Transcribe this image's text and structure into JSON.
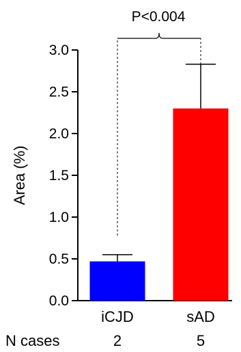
{
  "chart_data": {
    "type": "bar",
    "categories": [
      "iCJD",
      "sAD"
    ],
    "values": [
      0.47,
      2.3
    ],
    "errors": [
      0.08,
      0.53
    ],
    "colors": [
      "#0000ff",
      "#ff0000"
    ],
    "ylabel": "Area (%)",
    "xlabel": "",
    "ylim": [
      0,
      3.0
    ],
    "yticks": [
      0.0,
      0.5,
      1.0,
      1.5,
      2.0,
      2.5,
      3.0
    ],
    "ytick_labels": [
      "0.0",
      "0.5",
      "1.0",
      "1.5",
      "2.0",
      "2.5",
      "3.0"
    ],
    "grid": false,
    "annotation": "P<0.004",
    "n_cases": {
      "label": "N cases",
      "values": [
        "2",
        "5"
      ]
    }
  }
}
